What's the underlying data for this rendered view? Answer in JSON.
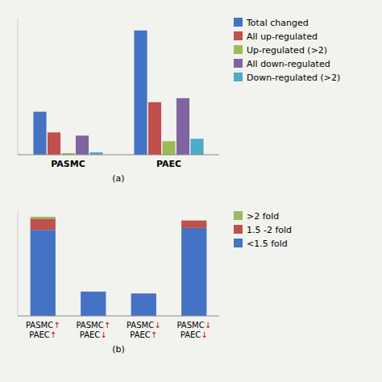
{
  "chart_data": [
    {
      "type": "bar",
      "x_label": "(a)",
      "categories": [
        "PASMC",
        "PAEC"
      ],
      "series": [
        {
          "name": "Total changed",
          "color": "#4472c4",
          "values": [
            270,
            780
          ]
        },
        {
          "name": "All up-regulated",
          "color": "#c0504d",
          "values": [
            140,
            330
          ]
        },
        {
          "name": "Up-regulated (>2)",
          "color": "#9bbb59",
          "values": [
            10,
            85
          ]
        },
        {
          "name": "All down-regulated",
          "color": "#8064a2",
          "values": [
            120,
            355
          ]
        },
        {
          "name": "Down-regulated (>2)",
          "color": "#4bacc6",
          "values": [
            15,
            100
          ]
        }
      ],
      "ylim": [
        0,
        860
      ],
      "tick_labels": "x",
      "grid": false,
      "legend": "right"
    },
    {
      "type": "bar",
      "x_label": "(b)",
      "stacked": true,
      "categories": [
        "PASMC↑\nPAEC↑",
        "PASMC↑\nPAEC↓",
        "PASMC↓\nPAEC↑",
        "PASMC↓\nPAEC↓"
      ],
      "series": [
        {
          "name": ">2 fold",
          "color": "#9bbb59",
          "values": [
            5,
            0,
            0,
            0
          ]
        },
        {
          "name": "1.5 -2 fold",
          "color": "#c0504d",
          "values": [
            30,
            0,
            0,
            20
          ]
        },
        {
          "name": "<1.5 fold",
          "color": "#4472c4",
          "values": [
            230,
            65,
            60,
            235
          ]
        }
      ],
      "ylim": [
        0,
        280
      ],
      "tick_labels": "x",
      "grid": false,
      "legend": "right"
    }
  ]
}
